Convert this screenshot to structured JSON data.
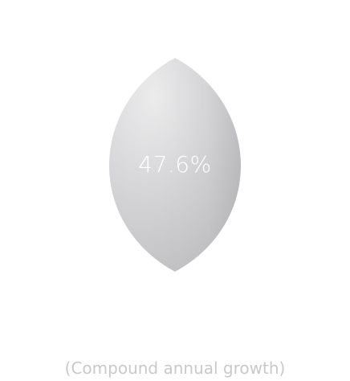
{
  "stat": {
    "value": "47.6%",
    "caption": "(Compound annual growth)"
  },
  "colors": {
    "leaf_light": "#ececec",
    "leaf_mid": "#d8d8da",
    "leaf_dark": "#bdbdc0",
    "value_text": "#ffffff",
    "caption_text": "#c9c9c9"
  }
}
